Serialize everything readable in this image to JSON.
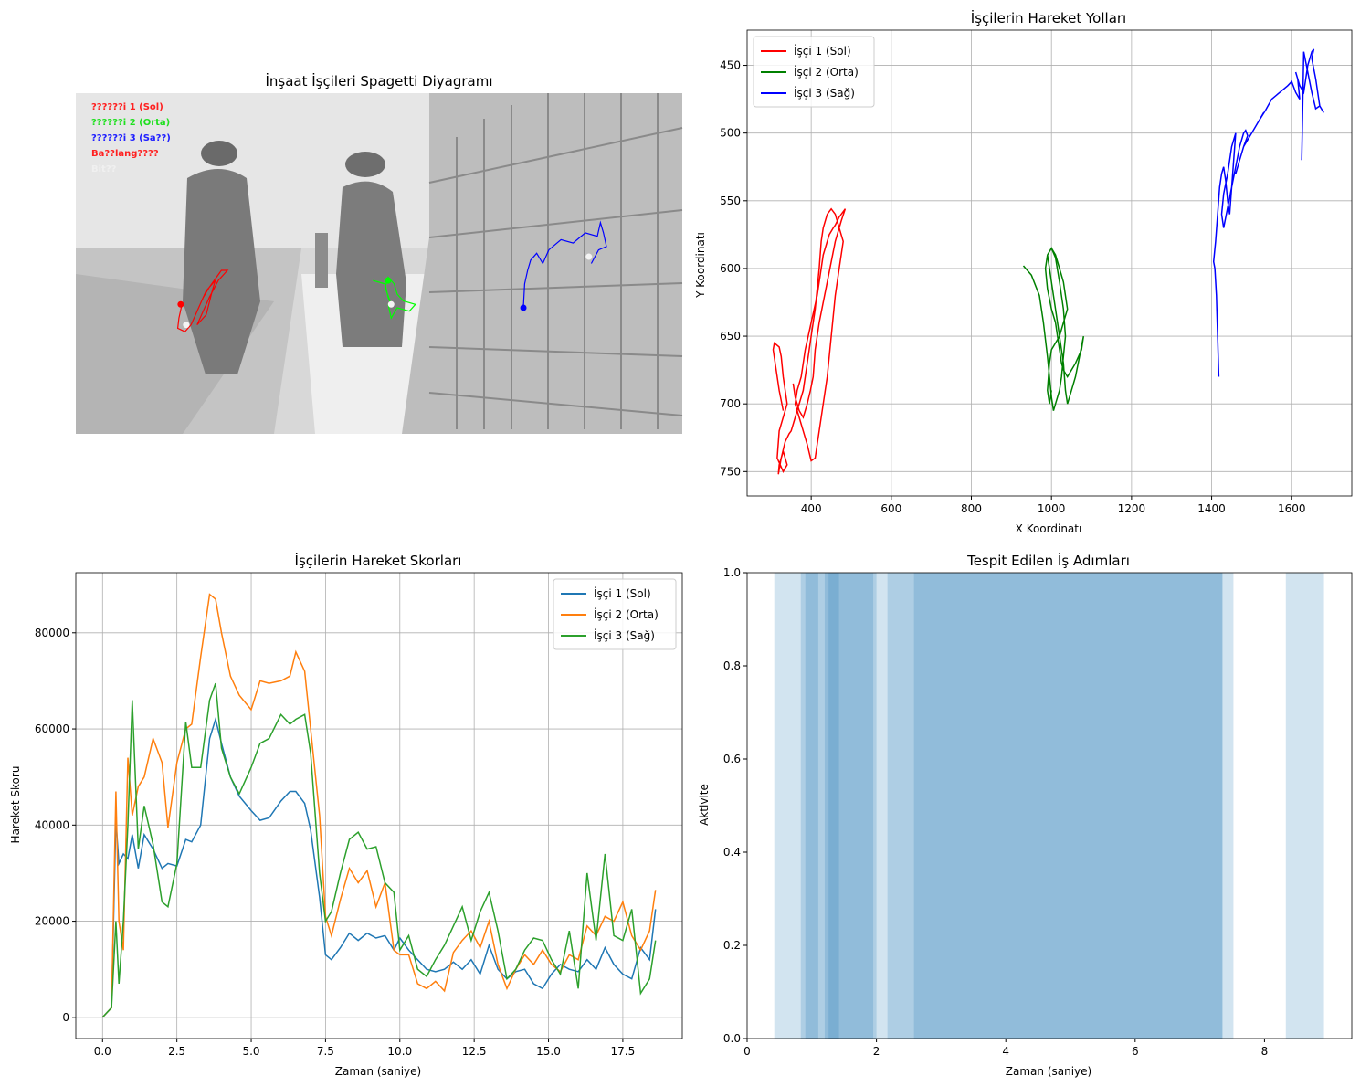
{
  "chart_data": [
    {
      "type": "image",
      "title": "İnşaat İşçileri Spagetti Diyagramı",
      "overlay_labels": [
        {
          "text": "??????i 1 (Sol)",
          "color": "#ff2020"
        },
        {
          "text": "??????i 2 (Orta)",
          "color": "#20e020"
        },
        {
          "text": "??????i 3 (Sa??)",
          "color": "#2020ff"
        },
        {
          "text": "Ba??lang????",
          "color": "#ff2020"
        },
        {
          "text": "Bit??",
          "color": "#f0f0f0"
        }
      ],
      "tracks": [
        {
          "color": "#ff0000",
          "points": [
            [
              0.175,
              0.62
            ],
            [
              0.17,
              0.66
            ],
            [
              0.168,
              0.69
            ],
            [
              0.18,
              0.7
            ],
            [
              0.19,
              0.68
            ],
            [
              0.2,
              0.64
            ],
            [
              0.21,
              0.6
            ],
            [
              0.22,
              0.57
            ],
            [
              0.24,
              0.52
            ],
            [
              0.25,
              0.52
            ],
            [
              0.235,
              0.55
            ],
            [
              0.22,
              0.6
            ],
            [
              0.21,
              0.64
            ],
            [
              0.2,
              0.68
            ],
            [
              0.215,
              0.65
            ],
            [
              0.225,
              0.58
            ],
            [
              0.23,
              0.55
            ],
            [
              0.215,
              0.58
            ],
            [
              0.205,
              0.62
            ]
          ],
          "start": [
            0.173,
            0.62
          ],
          "end": [
            0.182,
            0.68
          ]
        },
        {
          "color": "#00ff00",
          "points": [
            [
              0.49,
              0.55
            ],
            [
              0.51,
              0.56
            ],
            [
              0.515,
              0.6
            ],
            [
              0.52,
              0.62
            ],
            [
              0.51,
              0.57
            ],
            [
              0.515,
              0.54
            ],
            [
              0.525,
              0.56
            ],
            [
              0.53,
              0.59
            ],
            [
              0.54,
              0.61
            ],
            [
              0.56,
              0.62
            ],
            [
              0.55,
              0.64
            ],
            [
              0.53,
              0.63
            ],
            [
              0.52,
              0.66
            ],
            [
              0.515,
              0.62
            ]
          ],
          "start": [
            0.515,
            0.55
          ],
          "end": [
            0.52,
            0.62
          ]
        },
        {
          "color": "#0000ff",
          "points": [
            [
              0.738,
              0.63
            ],
            [
              0.74,
              0.56
            ],
            [
              0.745,
              0.52
            ],
            [
              0.75,
              0.49
            ],
            [
              0.76,
              0.47
            ],
            [
              0.77,
              0.5
            ],
            [
              0.78,
              0.46
            ],
            [
              0.8,
              0.43
            ],
            [
              0.82,
              0.44
            ],
            [
              0.84,
              0.41
            ],
            [
              0.86,
              0.42
            ],
            [
              0.865,
              0.38
            ],
            [
              0.87,
              0.41
            ],
            [
              0.875,
              0.45
            ],
            [
              0.862,
              0.46
            ],
            [
              0.85,
              0.5
            ]
          ],
          "start": [
            0.738,
            0.63
          ],
          "end": [
            0.846,
            0.48
          ]
        }
      ]
    },
    {
      "type": "line",
      "title": "İşçilerin Hareket Yolları",
      "xlabel": "X Koordinatı",
      "ylabel": "Y Koordinatı",
      "xlim": [
        240,
        1750
      ],
      "ylim": [
        768,
        424
      ],
      "xticks": [
        400,
        600,
        800,
        1000,
        1200,
        1400,
        1600
      ],
      "yticks": [
        450,
        500,
        550,
        600,
        650,
        700,
        750
      ],
      "grid": true,
      "legend": "top-left",
      "series": [
        {
          "name": "İşçi 1 (Sol)",
          "color": "#ff0000",
          "x": [
            330,
            320,
            310,
            305,
            308,
            320,
            325,
            330,
            340,
            320,
            315,
            330,
            340,
            330,
            320,
            318,
            325,
            335,
            345,
            350,
            360,
            370,
            380,
            390,
            400,
            410,
            420,
            425,
            430,
            440,
            450,
            460,
            470,
            480,
            470,
            460,
            450,
            440,
            430,
            420,
            410,
            400,
            390,
            380,
            370,
            360,
            365,
            375,
            385,
            400,
            415,
            430,
            445,
            455,
            460,
            470,
            480,
            485,
            475,
            460,
            440,
            420,
            410,
            405,
            398,
            390,
            380,
            370,
            360,
            355
          ],
          "y": [
            705,
            690,
            670,
            660,
            655,
            658,
            665,
            680,
            700,
            720,
            740,
            750,
            745,
            735,
            745,
            752,
            740,
            728,
            722,
            720,
            710,
            700,
            690,
            670,
            650,
            630,
            600,
            580,
            570,
            560,
            556,
            560,
            570,
            580,
            600,
            620,
            650,
            680,
            700,
            720,
            740,
            742,
            730,
            720,
            710,
            700,
            690,
            680,
            660,
            640,
            620,
            590,
            575,
            570,
            568,
            562,
            558,
            556,
            565,
            580,
            610,
            640,
            660,
            680,
            690,
            700,
            710,
            705,
            695,
            685
          ]
        },
        {
          "name": "İşçi 2 (Orta)",
          "color": "#008000",
          "x": [
            930,
            950,
            970,
            980,
            990,
            995,
            1000,
            1005,
            1010,
            1020,
            1025,
            1030,
            1035,
            1030,
            1020,
            1010,
            1000,
            990,
            985,
            990,
            1000,
            1010,
            1015,
            1020,
            1025,
            1030,
            1040,
            1060,
            1075,
            1080,
            1070,
            1060,
            1050,
            1040,
            1035,
            1030,
            1020,
            1010,
            1000,
            995,
            990,
            1000,
            1010,
            1020,
            1030,
            1035,
            1040,
            1030,
            1020,
            1010,
            1000,
            995,
            990,
            995,
            1000
          ],
          "y": [
            598,
            605,
            620,
            640,
            665,
            680,
            695,
            705,
            700,
            690,
            680,
            665,
            650,
            630,
            610,
            592,
            585,
            590,
            600,
            615,
            630,
            640,
            650,
            660,
            670,
            675,
            680,
            670,
            660,
            650,
            665,
            680,
            690,
            700,
            690,
            670,
            650,
            630,
            610,
            600,
            590,
            585,
            590,
            600,
            610,
            620,
            630,
            640,
            650,
            655,
            660,
            670,
            690,
            700,
            690
          ]
        },
        {
          "name": "İşçi 3 (Sağ)",
          "color": "#0000ff",
          "x": [
            1418,
            1415,
            1412,
            1408,
            1405,
            1410,
            1415,
            1420,
            1425,
            1430,
            1435,
            1440,
            1445,
            1450,
            1455,
            1460,
            1450,
            1440,
            1430,
            1425,
            1430,
            1440,
            1450,
            1460,
            1470,
            1480,
            1485,
            1490,
            1480,
            1470,
            1460,
            1470,
            1480,
            1490,
            1500,
            1510,
            1520,
            1530,
            1520,
            1535,
            1550,
            1570,
            1590,
            1600,
            1610,
            1620,
            1615,
            1610,
            1620,
            1630,
            1640,
            1650,
            1655,
            1650,
            1660,
            1670,
            1680,
            1670,
            1660,
            1650,
            1640,
            1630,
            1625
          ],
          "y": [
            680,
            650,
            620,
            600,
            595,
            580,
            560,
            540,
            530,
            525,
            535,
            550,
            560,
            540,
            520,
            500,
            510,
            530,
            545,
            560,
            570,
            555,
            540,
            525,
            510,
            500,
            498,
            502,
            510,
            520,
            530,
            520,
            510,
            505,
            500,
            495,
            490,
            485,
            490,
            483,
            475,
            470,
            465,
            462,
            470,
            475,
            460,
            455,
            465,
            470,
            450,
            440,
            438,
            445,
            460,
            480,
            485,
            480,
            482,
            470,
            455,
            440,
            520
          ]
        }
      ]
    },
    {
      "type": "line",
      "title": "İşçilerin Hareket Skorları",
      "xlabel": "Zaman (saniye)",
      "ylabel": "Hareket Skoru",
      "xlim": [
        -0.9,
        19.5
      ],
      "ylim": [
        -4400,
        92500
      ],
      "xticks": [
        0.0,
        2.5,
        5.0,
        7.5,
        10.0,
        12.5,
        15.0,
        17.5
      ],
      "yticks": [
        0,
        20000,
        40000,
        60000,
        80000
      ],
      "grid": true,
      "legend": "top-right",
      "x": [
        0,
        0.3,
        0.45,
        0.55,
        0.7,
        0.85,
        1.0,
        1.2,
        1.4,
        1.7,
        2.0,
        2.2,
        2.5,
        2.8,
        3.0,
        3.3,
        3.6,
        3.8,
        4.0,
        4.3,
        4.6,
        5.0,
        5.3,
        5.6,
        6.0,
        6.3,
        6.5,
        6.8,
        7.0,
        7.3,
        7.5,
        7.7,
        8.0,
        8.3,
        8.6,
        8.9,
        9.2,
        9.5,
        9.8,
        10.0,
        10.3,
        10.6,
        10.9,
        11.2,
        11.5,
        11.8,
        12.1,
        12.4,
        12.7,
        13.0,
        13.3,
        13.6,
        13.9,
        14.2,
        14.5,
        14.8,
        15.1,
        15.4,
        15.7,
        16.0,
        16.3,
        16.6,
        16.9,
        17.2,
        17.5,
        17.8,
        18.1,
        18.4,
        18.6
      ],
      "series": [
        {
          "name": "İşçi 1 (Sol)",
          "color": "#1f77b4",
          "values": [
            0,
            2000,
            41000,
            32000,
            34000,
            33000,
            38000,
            31000,
            38000,
            35000,
            31000,
            32000,
            31500,
            37000,
            36500,
            40000,
            58000,
            62000,
            57000,
            50000,
            46000,
            43000,
            41000,
            41500,
            45000,
            47000,
            47000,
            44500,
            39000,
            25000,
            13000,
            12000,
            14500,
            17500,
            16000,
            17500,
            16500,
            17000,
            14000,
            16500,
            14000,
            12000,
            10000,
            9500,
            10000,
            11500,
            10000,
            12000,
            9000,
            15000,
            10000,
            8000,
            9500,
            10000,
            7000,
            6000,
            9000,
            11000,
            10000,
            9500,
            12000,
            10000,
            14500,
            11000,
            9000,
            8000,
            14500,
            12000,
            22500
          ]
        },
        {
          "name": "İşçi 2 (Orta)",
          "color": "#ff7f0e",
          "values": [
            0,
            2000,
            47000,
            20000,
            14000,
            54000,
            42000,
            48000,
            50000,
            58000,
            53000,
            39500,
            53000,
            60000,
            61000,
            75000,
            88000,
            87000,
            80000,
            71000,
            67000,
            64000,
            70000,
            69500,
            70000,
            71000,
            76000,
            72000,
            60000,
            42000,
            21000,
            17000,
            24500,
            31000,
            28000,
            30500,
            23000,
            28000,
            14000,
            13000,
            13000,
            7000,
            6000,
            7500,
            5500,
            13500,
            16000,
            18000,
            14500,
            20000,
            11000,
            6000,
            10000,
            13000,
            11000,
            14000,
            11000,
            9500,
            13000,
            12000,
            19000,
            17000,
            21000,
            20000,
            24000,
            17000,
            14000,
            18000,
            26500
          ]
        },
        {
          "name": "İşçi 3 (Sağ)",
          "color": "#2ca02c",
          "values": [
            0,
            2000,
            20000,
            7000,
            20000,
            40000,
            66000,
            35000,
            44000,
            36000,
            24000,
            23000,
            32000,
            61500,
            52000,
            52000,
            66000,
            69500,
            56000,
            50000,
            46500,
            52000,
            57000,
            58000,
            63000,
            61000,
            62000,
            63000,
            55000,
            30000,
            20000,
            22000,
            30000,
            37000,
            38500,
            35000,
            35500,
            28000,
            26000,
            14000,
            17000,
            10000,
            8500,
            12000,
            15000,
            19000,
            23000,
            16000,
            22000,
            26000,
            18000,
            8000,
            10000,
            14000,
            16500,
            16000,
            12000,
            9000,
            18000,
            6000,
            30000,
            16000,
            34000,
            17000,
            16000,
            22500,
            5000,
            8000,
            16000
          ]
        }
      ]
    },
    {
      "type": "bar",
      "title": "Tespit Edilen İş Adımları",
      "xlabel": "Zaman (saniye)",
      "ylabel": "Aktivite",
      "xlim": [
        0,
        9.35
      ],
      "ylim": [
        0,
        1.0
      ],
      "xticks": [
        0,
        2,
        4,
        6,
        8
      ],
      "yticks": [
        0.0,
        0.2,
        0.4,
        0.6,
        0.8,
        1.0
      ],
      "grid": false,
      "spans": [
        {
          "start": 0.42,
          "end": 7.52
        },
        {
          "start": 0.83,
          "end": 2.0
        },
        {
          "start": 0.9,
          "end": 1.1
        },
        {
          "start": 1.2,
          "end": 1.42
        },
        {
          "start": 1.26,
          "end": 1.95
        },
        {
          "start": 2.17,
          "end": 7.35
        },
        {
          "start": 2.58,
          "end": 7.35
        },
        {
          "start": 8.33,
          "end": 8.92
        }
      ],
      "color": "#1f77b4"
    }
  ]
}
